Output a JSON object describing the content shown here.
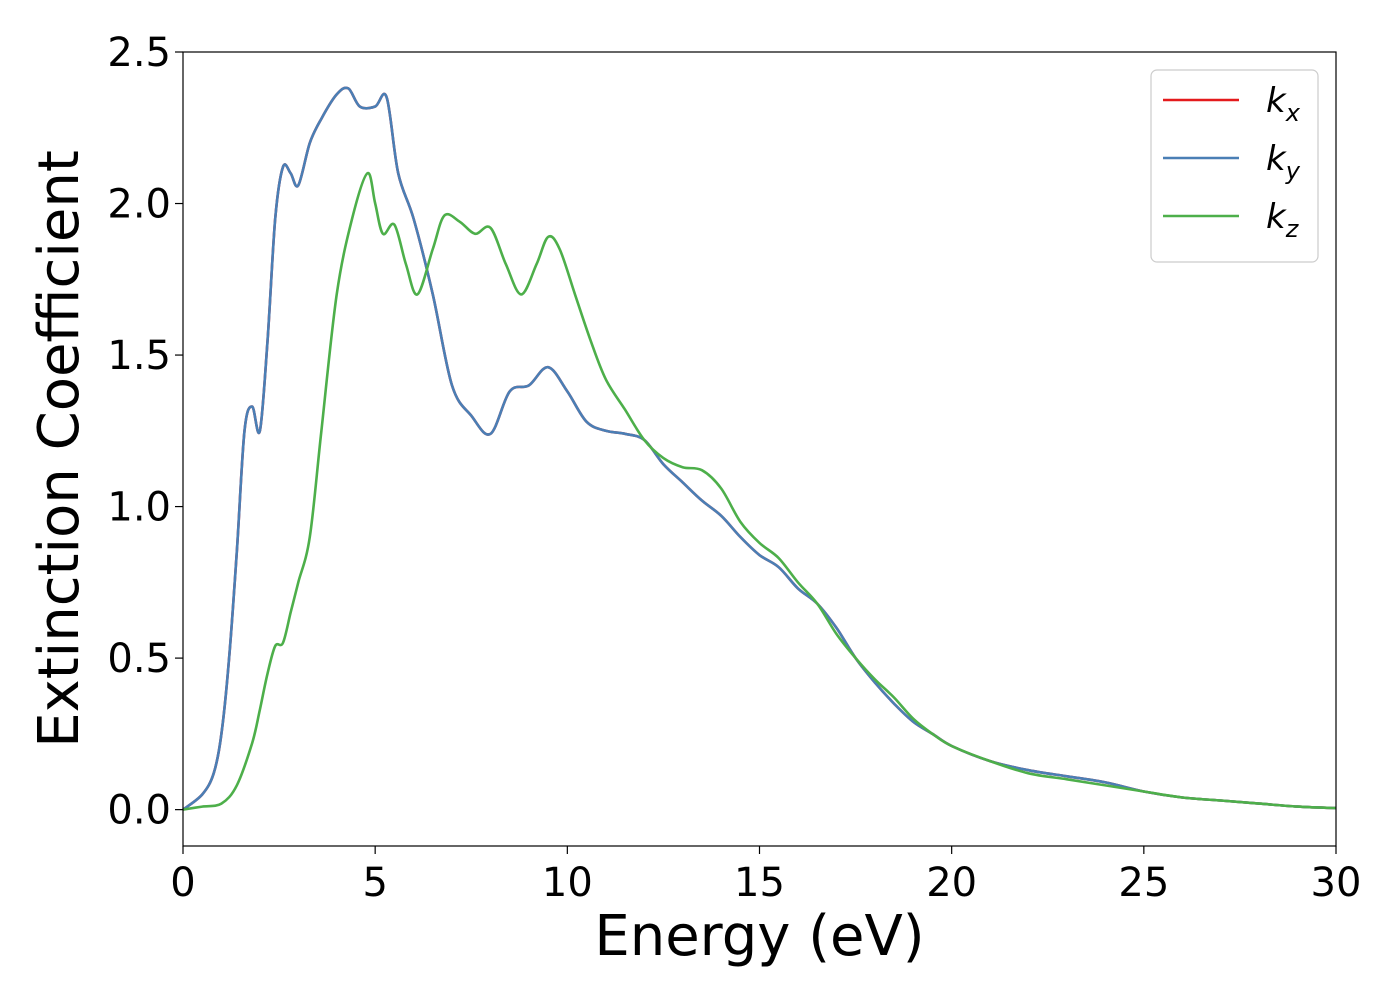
{
  "chart_data": {
    "type": "line",
    "title": "",
    "xlabel": "Energy (eV)",
    "ylabel": "Extinction Coefficient",
    "xlim": [
      0,
      30
    ],
    "ylim": [
      -0.12,
      2.5
    ],
    "xticks": [
      0,
      5,
      10,
      15,
      20,
      25,
      30
    ],
    "xtick_labels": [
      "0",
      "5",
      "10",
      "15",
      "20",
      "25",
      "30"
    ],
    "yticks": [
      0.0,
      0.5,
      1.0,
      1.5,
      2.0,
      2.5
    ],
    "ytick_labels": [
      "0.0",
      "0.5",
      "1.0",
      "1.5",
      "2.0",
      "2.5"
    ],
    "grid": false,
    "legend": {
      "placement": "top-right"
    },
    "series": [
      {
        "name": "k",
        "sub": "x",
        "color": "#e41a1c",
        "x": [
          0,
          0.5,
          0.8,
          1.0,
          1.2,
          1.4,
          1.6,
          1.8,
          2.0,
          2.2,
          2.4,
          2.6,
          2.8,
          3.0,
          3.3,
          3.6,
          4.0,
          4.3,
          4.6,
          5.0,
          5.3,
          5.6,
          6.0,
          6.5,
          7.0,
          7.5,
          8.0,
          8.5,
          9.0,
          9.5,
          10.0,
          10.5,
          11.0,
          11.5,
          12.0,
          12.5,
          13.0,
          13.5,
          14.0,
          14.5,
          15.0,
          15.5,
          16.0,
          16.5,
          17.0,
          17.5,
          18.0,
          18.5,
          19.0,
          19.5,
          20.0,
          21.0,
          22.0,
          23.0,
          24.0,
          25.0,
          26.0,
          27.0,
          28.0,
          29.0,
          30.0
        ],
        "y": [
          0,
          0.05,
          0.12,
          0.25,
          0.5,
          0.85,
          1.25,
          1.33,
          1.25,
          1.55,
          1.95,
          2.12,
          2.1,
          2.06,
          2.2,
          2.28,
          2.36,
          2.38,
          2.32,
          2.32,
          2.35,
          2.1,
          1.95,
          1.7,
          1.4,
          1.3,
          1.24,
          1.38,
          1.4,
          1.46,
          1.38,
          1.28,
          1.25,
          1.24,
          1.22,
          1.14,
          1.08,
          1.02,
          0.97,
          0.9,
          0.84,
          0.8,
          0.73,
          0.68,
          0.6,
          0.5,
          0.42,
          0.35,
          0.29,
          0.25,
          0.21,
          0.16,
          0.13,
          0.11,
          0.09,
          0.06,
          0.04,
          0.03,
          0.02,
          0.01,
          0.005
        ]
      },
      {
        "name": "k",
        "sub": "y",
        "color": "#4a7fb5",
        "x": [
          0,
          0.5,
          0.8,
          1.0,
          1.2,
          1.4,
          1.6,
          1.8,
          2.0,
          2.2,
          2.4,
          2.6,
          2.8,
          3.0,
          3.3,
          3.6,
          4.0,
          4.3,
          4.6,
          5.0,
          5.3,
          5.6,
          6.0,
          6.5,
          7.0,
          7.5,
          8.0,
          8.5,
          9.0,
          9.5,
          10.0,
          10.5,
          11.0,
          11.5,
          12.0,
          12.5,
          13.0,
          13.5,
          14.0,
          14.5,
          15.0,
          15.5,
          16.0,
          16.5,
          17.0,
          17.5,
          18.0,
          18.5,
          19.0,
          19.5,
          20.0,
          21.0,
          22.0,
          23.0,
          24.0,
          25.0,
          26.0,
          27.0,
          28.0,
          29.0,
          30.0
        ],
        "y": [
          0,
          0.05,
          0.12,
          0.25,
          0.5,
          0.85,
          1.25,
          1.33,
          1.25,
          1.55,
          1.95,
          2.12,
          2.1,
          2.06,
          2.2,
          2.28,
          2.36,
          2.38,
          2.32,
          2.32,
          2.35,
          2.1,
          1.95,
          1.7,
          1.4,
          1.3,
          1.24,
          1.38,
          1.4,
          1.46,
          1.38,
          1.28,
          1.25,
          1.24,
          1.22,
          1.14,
          1.08,
          1.02,
          0.97,
          0.9,
          0.84,
          0.8,
          0.73,
          0.68,
          0.6,
          0.5,
          0.42,
          0.35,
          0.29,
          0.25,
          0.21,
          0.16,
          0.13,
          0.11,
          0.09,
          0.06,
          0.04,
          0.03,
          0.02,
          0.01,
          0.005
        ]
      },
      {
        "name": "k",
        "sub": "z",
        "color": "#4daf4a",
        "x": [
          0,
          0.5,
          1.0,
          1.4,
          1.8,
          2.0,
          2.2,
          2.4,
          2.6,
          2.8,
          3.0,
          3.3,
          3.6,
          4.0,
          4.4,
          4.8,
          5.0,
          5.2,
          5.5,
          5.8,
          6.1,
          6.5,
          6.8,
          7.2,
          7.6,
          8.0,
          8.4,
          8.8,
          9.2,
          9.5,
          9.8,
          10.2,
          10.6,
          11.0,
          11.5,
          12.0,
          12.5,
          13.0,
          13.5,
          14.0,
          14.5,
          15.0,
          15.5,
          16.0,
          16.5,
          17.0,
          17.5,
          18.0,
          18.5,
          19.0,
          19.5,
          20.0,
          21.0,
          22.0,
          23.0,
          24.0,
          25.0,
          26.0,
          27.0,
          28.0,
          29.0,
          30.0
        ],
        "y": [
          0,
          0.01,
          0.02,
          0.08,
          0.22,
          0.33,
          0.45,
          0.54,
          0.55,
          0.65,
          0.75,
          0.9,
          1.25,
          1.7,
          1.95,
          2.1,
          2.0,
          1.9,
          1.93,
          1.8,
          1.7,
          1.85,
          1.96,
          1.94,
          1.9,
          1.92,
          1.8,
          1.7,
          1.8,
          1.89,
          1.85,
          1.7,
          1.55,
          1.42,
          1.32,
          1.22,
          1.16,
          1.13,
          1.12,
          1.06,
          0.95,
          0.88,
          0.83,
          0.75,
          0.68,
          0.58,
          0.5,
          0.43,
          0.37,
          0.3,
          0.25,
          0.21,
          0.16,
          0.12,
          0.1,
          0.08,
          0.06,
          0.04,
          0.03,
          0.02,
          0.01,
          0.005
        ]
      }
    ]
  }
}
